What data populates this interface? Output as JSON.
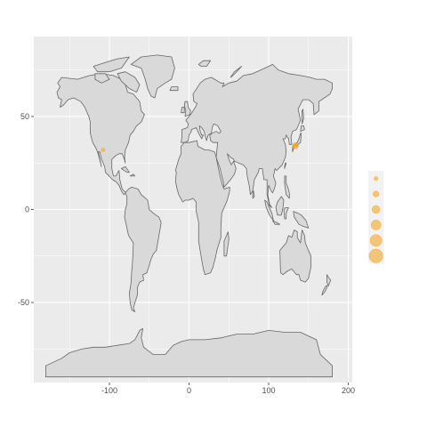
{
  "chart_data": {
    "type": "scatter",
    "subtype": "bubble-map",
    "title": "",
    "xlabel": "",
    "ylabel": "",
    "xlim": [
      -195,
      205
    ],
    "ylim": [
      -93,
      93
    ],
    "x_ticks": [
      -100,
      0,
      100,
      200
    ],
    "x_tick_labels": [
      "-100",
      "0",
      "100",
      "200"
    ],
    "y_ticks": [
      -50,
      0,
      50
    ],
    "y_tick_labels": [
      "-50",
      "0",
      "50"
    ],
    "grid": true,
    "legend": "right",
    "points": [
      {
        "lon": -108.0,
        "lat": 32.0,
        "size": 1
      },
      {
        "lon": 132.0,
        "lat": 34.0,
        "size": 1
      },
      {
        "lon": 133.0,
        "lat": 35.0,
        "size": 1
      },
      {
        "lon": 134.0,
        "lat": 33.5,
        "size": 1
      },
      {
        "lon": 135.5,
        "lat": 34.5,
        "size": 1
      }
    ],
    "legend_entries": [
      {
        "size": 1
      },
      {
        "size": 2
      },
      {
        "size": 3
      },
      {
        "size": 4
      },
      {
        "size": 5
      },
      {
        "size": 6
      }
    ]
  },
  "colors": {
    "panel_background": "#ebebeb",
    "grid_major": "#ffffff",
    "land_fill": "#d9d9d9",
    "land_border": "#666666",
    "point_fill": "#f5a623",
    "legend_key_background": "#f2f2f2",
    "axis_text": "#4d4d4d"
  }
}
